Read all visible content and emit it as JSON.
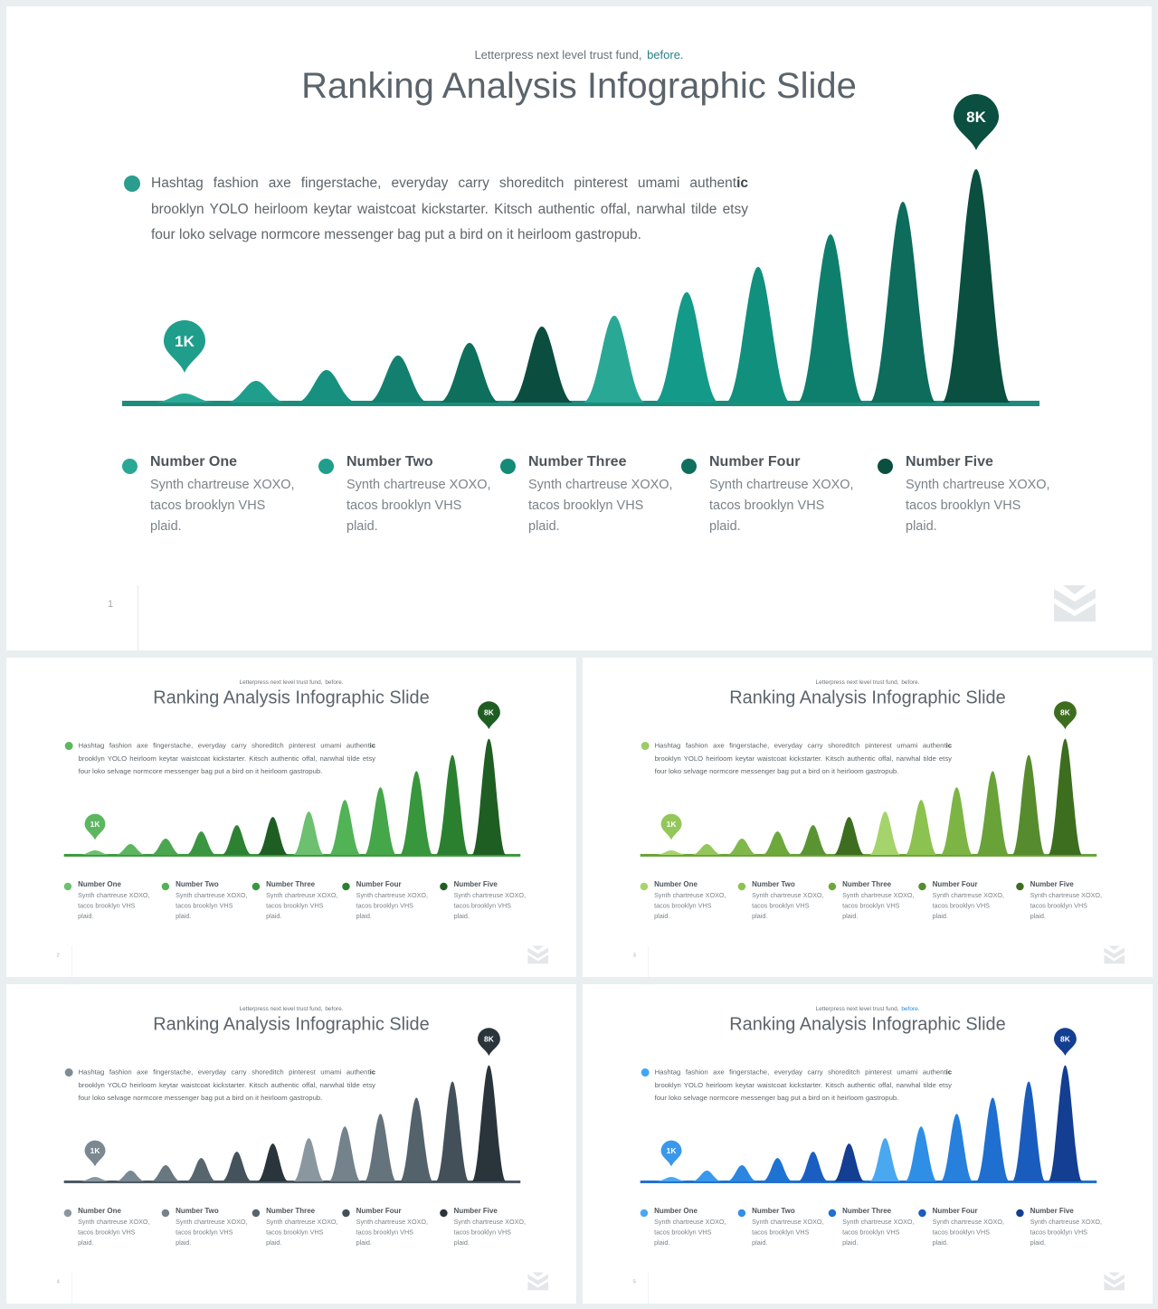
{
  "slides": [
    {
      "page": "1",
      "subtitle": "Letterpress next level trust fund,",
      "subtitle_highlight": "before.",
      "title": "Ranking Analysis Infographic Slide",
      "intro": "Hashtag fashion axe fingerstache, everyday carry shoreditch pinterest umami authentic brooklyn YOLO heirloom keytar waistcoat kickstarter. Kitsch authentic offal, narwhal tilde etsy four loko selvage normcore messenger bag put a bird on it heirloom gastropub.",
      "pin_low": "1K",
      "pin_high": "8K",
      "theme": {
        "accent": "#2a9d8f",
        "base": "#1e8c7c",
        "highlight": "#2a7f8a",
        "peaks": [
          "#2aa896",
          "#1f9e8c",
          "#17907f",
          "#13806f",
          "#0e6f5d",
          "#0b4d3f",
          "#2aa896",
          "#149a88",
          "#11907e",
          "#0f7f6d",
          "#0d6c5b",
          "#0a4f40"
        ],
        "legend": [
          "#2aa896",
          "#1f9e8c",
          "#148a78",
          "#0e6f5d",
          "#0a4f40"
        ]
      },
      "legend": [
        {
          "title": "Number One",
          "desc": "Synth chartreuse XOXO, tacos brooklyn VHS plaid."
        },
        {
          "title": "Number Two",
          "desc": "Synth chartreuse XOXO, tacos brooklyn VHS plaid."
        },
        {
          "title": "Number Three",
          "desc": "Synth chartreuse XOXO, tacos brooklyn VHS plaid."
        },
        {
          "title": "Number Four",
          "desc": "Synth chartreuse XOXO, tacos brooklyn VHS plaid."
        },
        {
          "title": "Number Five",
          "desc": "Synth chartreuse XOXO, tacos brooklyn VHS plaid."
        }
      ]
    },
    {
      "page": "2",
      "subtitle": "Letterpress next level trust fund,",
      "subtitle_highlight": "before.",
      "title": "Ranking Analysis Infographic Slide",
      "intro": "Hashtag fashion axe fingerstache, everyday carry shoreditch pinterest umami authentic brooklyn YOLO heirloom keytar waistcoat kickstarter. Kitsch authentic offal, narwhal tilde etsy four loko selvage normcore messenger bag put a bird on it heirloom gastropub.",
      "pin_low": "1K",
      "pin_high": "8K",
      "theme": {
        "accent": "#5cb85c",
        "base": "#3c9a3c",
        "highlight": "#6b7278",
        "peaks": [
          "#6cc070",
          "#5cb660",
          "#4aa64f",
          "#3a9640",
          "#2c8232",
          "#1f5e23",
          "#6cc070",
          "#52b356",
          "#45a64a",
          "#38963d",
          "#2b8030",
          "#1f5e23"
        ],
        "legend": [
          "#6cc070",
          "#52b356",
          "#3a9640",
          "#2b8030",
          "#1f5e23"
        ]
      },
      "legend": [
        {
          "title": "Number One",
          "desc": "Synth chartreuse XOXO, tacos brooklyn VHS plaid."
        },
        {
          "title": "Number Two",
          "desc": "Synth chartreuse XOXO, tacos brooklyn VHS plaid."
        },
        {
          "title": "Number Three",
          "desc": "Synth chartreuse XOXO, tacos brooklyn VHS plaid."
        },
        {
          "title": "Number Four",
          "desc": "Synth chartreuse XOXO, tacos brooklyn VHS plaid."
        },
        {
          "title": "Number Five",
          "desc": "Synth chartreuse XOXO, tacos brooklyn VHS plaid."
        }
      ]
    },
    {
      "page": "3",
      "subtitle": "Letterpress next level trust fund,",
      "subtitle_highlight": "before.",
      "title": "Ranking Analysis Infographic Slide",
      "intro": "Hashtag fashion axe fingerstache, everyday carry shoreditch pinterest umami authentic brooklyn YOLO heirloom keytar waistcoat kickstarter. Kitsch authentic offal, narwhal tilde etsy four loko selvage normcore messenger bag put a bird on it heirloom gastropub.",
      "pin_low": "1K",
      "pin_high": "8K",
      "theme": {
        "accent": "#9ccc65",
        "base": "#6aa23a",
        "highlight": "#6b7278",
        "peaks": [
          "#a5d46c",
          "#93c75a",
          "#80b84b",
          "#6da83d",
          "#5a9432",
          "#3d6e1f",
          "#a5d46c",
          "#8cc24f",
          "#7db545",
          "#6aa23a",
          "#578c2e",
          "#3d6e1f"
        ],
        "legend": [
          "#a5d46c",
          "#8cc24f",
          "#6da83d",
          "#578c2e",
          "#3d6e1f"
        ]
      },
      "legend": [
        {
          "title": "Number One",
          "desc": "Synth chartreuse XOXO, tacos brooklyn VHS plaid."
        },
        {
          "title": "Number Two",
          "desc": "Synth chartreuse XOXO, tacos brooklyn VHS plaid."
        },
        {
          "title": "Number Three",
          "desc": "Synth chartreuse XOXO, tacos brooklyn VHS plaid."
        },
        {
          "title": "Number Four",
          "desc": "Synth chartreuse XOXO, tacos brooklyn VHS plaid."
        },
        {
          "title": "Number Five",
          "desc": "Synth chartreuse XOXO, tacos brooklyn VHS plaid."
        }
      ]
    },
    {
      "page": "4",
      "subtitle": "Letterpress next level trust fund,",
      "subtitle_highlight": "before.",
      "title": "Ranking Analysis Infographic Slide",
      "intro": "Hashtag fashion axe fingerstache, everyday carry shoreditch pinterest umami authentic brooklyn YOLO heirloom keytar waistcoat kickstarter. Kitsch authentic offal, narwhal tilde etsy four loko selvage normcore messenger bag put a bird on it heirloom gastropub.",
      "pin_low": "1K",
      "pin_high": "8K",
      "theme": {
        "accent": "#7d8b94",
        "base": "#4a5660",
        "highlight": "#6b7278",
        "peaks": [
          "#8a979f",
          "#7a8891",
          "#687780",
          "#56656e",
          "#44525b",
          "#2a343b",
          "#8a979f",
          "#73828b",
          "#64737c",
          "#54626b",
          "#43505a",
          "#2a343b"
        ],
        "legend": [
          "#8a979f",
          "#73828b",
          "#56656e",
          "#43505a",
          "#2a343b"
        ]
      },
      "legend": [
        {
          "title": "Number One",
          "desc": "Synth chartreuse XOXO, tacos brooklyn VHS plaid."
        },
        {
          "title": "Number Two",
          "desc": "Synth chartreuse XOXO, tacos brooklyn VHS plaid."
        },
        {
          "title": "Number Three",
          "desc": "Synth chartreuse XOXO, tacos brooklyn VHS plaid."
        },
        {
          "title": "Number Four",
          "desc": "Synth chartreuse XOXO, tacos brooklyn VHS plaid."
        },
        {
          "title": "Number Five",
          "desc": "Synth chartreuse XOXO, tacos brooklyn VHS plaid."
        }
      ]
    },
    {
      "page": "5",
      "subtitle": "Letterpress next level trust fund,",
      "subtitle_highlight": "before.",
      "title": "Ranking Analysis Infographic Slide",
      "intro": "Hashtag fashion axe fingerstache, everyday carry shoreditch pinterest umami authentic brooklyn YOLO heirloom keytar waistcoat kickstarter. Kitsch authentic offal, narwhal tilde etsy four loko selvage normcore messenger bag put a bird on it heirloom gastropub.",
      "pin_low": "1K",
      "pin_high": "8K",
      "theme": {
        "accent": "#42a5f5",
        "base": "#1e6fd0",
        "highlight": "#1e88e5",
        "peaks": [
          "#4aa8f0",
          "#3a98ea",
          "#2a86e0",
          "#1e72d2",
          "#195ec0",
          "#133e92",
          "#4aa8f0",
          "#2f8fe6",
          "#2680dc",
          "#1e6fd0",
          "#1a5cbd",
          "#133e92"
        ],
        "legend": [
          "#4aa8f0",
          "#2f8fe6",
          "#1e72d2",
          "#1a5cbd",
          "#133e92"
        ]
      },
      "legend": [
        {
          "title": "Number One",
          "desc": "Synth chartreuse XOXO, tacos brooklyn VHS plaid."
        },
        {
          "title": "Number Two",
          "desc": "Synth chartreuse XOXO, tacos brooklyn VHS plaid."
        },
        {
          "title": "Number Three",
          "desc": "Synth chartreuse XOXO, tacos brooklyn VHS plaid."
        },
        {
          "title": "Number Four",
          "desc": "Synth chartreuse XOXO, tacos brooklyn VHS plaid."
        },
        {
          "title": "Number Five",
          "desc": "Synth chartreuse XOXO, tacos brooklyn VHS plaid."
        }
      ]
    }
  ]
}
